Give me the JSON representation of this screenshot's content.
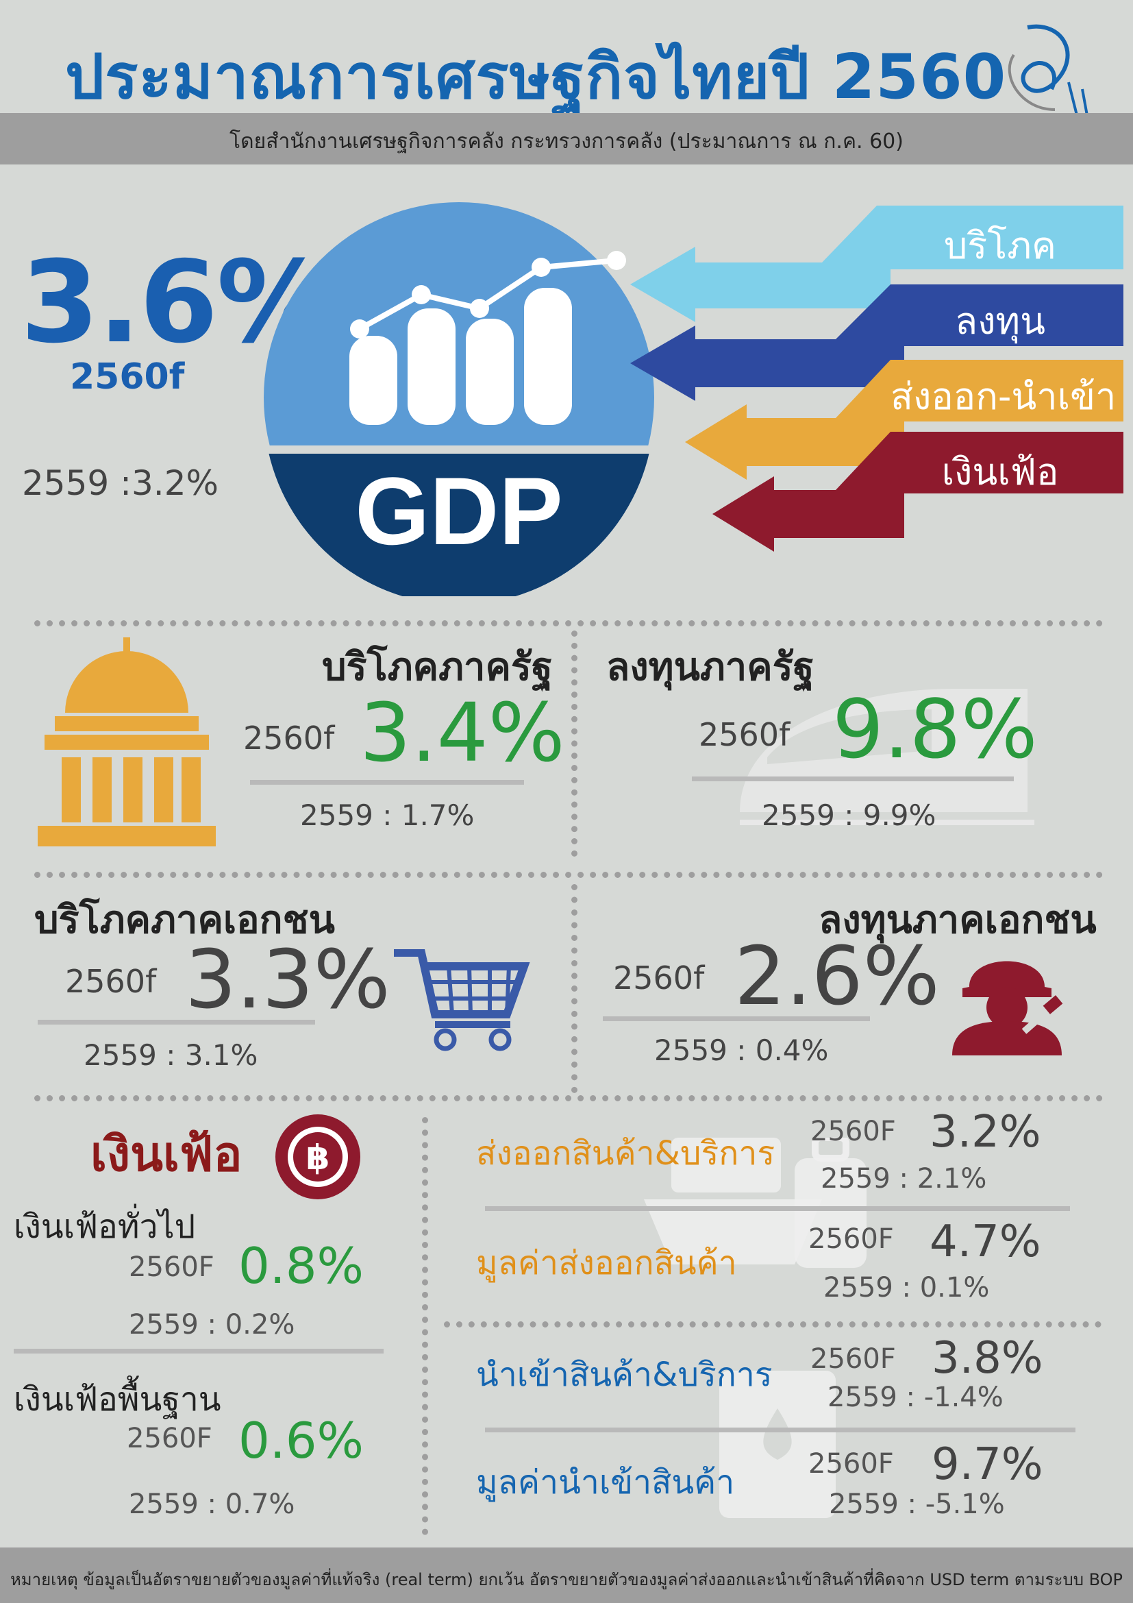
{
  "header": {
    "title": "ประมาณการเศรษฐกิจไทยปี 2560",
    "subtitle": "โดยสำนักงานเศรษฐกิจการคลัง กระทรวงการคลัง (ประมาณการ ณ ก.ค. 60)"
  },
  "gdp": {
    "value": "3.6%",
    "year": "2560f",
    "previous": "2559 :3.2%",
    "label": "GDP",
    "components": [
      "บริโภค",
      "ลงทุน",
      "ส่งออก-นำเข้า",
      "เงินเฟ้อ"
    ]
  },
  "public_consumption": {
    "title": "บริโภคภาครัฐ",
    "year": "2560f",
    "value": "3.4%",
    "previous": "2559 :  1.7%"
  },
  "public_investment": {
    "title": "ลงทุนภาครัฐ",
    "year": "2560f",
    "value": "9.8%",
    "previous": "2559 :    9.9%"
  },
  "private_consumption": {
    "title": "บริโภคภาคเอกชน",
    "year": "2560f",
    "value": "3.3%",
    "previous": "2559 :  3.1%"
  },
  "private_investment": {
    "title": "ลงทุนภาคเอกชน",
    "year": "2560f",
    "value": "2.6%",
    "previous": "2559 :  0.4%"
  },
  "inflation": {
    "title": "เงินเฟ้อ",
    "headline": {
      "label": "เงินเฟ้อทั่วไป",
      "year": "2560F",
      "value": "0.8%",
      "previous": "2559 :  0.2%"
    },
    "core": {
      "label": "เงินเฟ้อพื้นฐาน",
      "year": "2560F",
      "value": "0.6%",
      "previous": "2559 :  0.7%"
    }
  },
  "trade": [
    {
      "label": "ส่งออกสินค้า&บริการ",
      "year": "2560F",
      "value": "3.2%",
      "previous": "2559 :  2.1%"
    },
    {
      "label": "มูลค่าส่งออกสินค้า",
      "year": "2560F",
      "value": "4.7%",
      "previous": "2559 :  0.1%"
    },
    {
      "label": "นำเข้าสินค้า&บริการ",
      "year": "2560F",
      "value": "3.8%",
      "previous": "2559 :  -1.4%"
    },
    {
      "label": "มูลค่านำเข้าสินค้า",
      "year": "2560F",
      "value": "9.7%",
      "previous": "2559 :  -5.1%"
    }
  ],
  "footer": "หมายเหตุ ข้อมูลเป็นอัตราขยายตัวของมูลค่าที่แท้จริง (real term) ยกเว้น อัตราขยายตัวของมูลค่าส่งออกและนำเข้าสินค้าที่คิดจาก USD term ตามระบบ BOP",
  "colors": {
    "title_blue": "#1565b0",
    "green": "#2a9a3e",
    "dark_red": "#8b1a1a",
    "orange": "#e0901a"
  },
  "icons": [
    "logo-icon",
    "bar-chart-icon",
    "government-building-icon",
    "train-icon",
    "shopping-cart-icon",
    "worker-icon",
    "baht-coin-icon",
    "cargo-ship-icon",
    "luggage-icon",
    "oil-barrel-icon"
  ]
}
